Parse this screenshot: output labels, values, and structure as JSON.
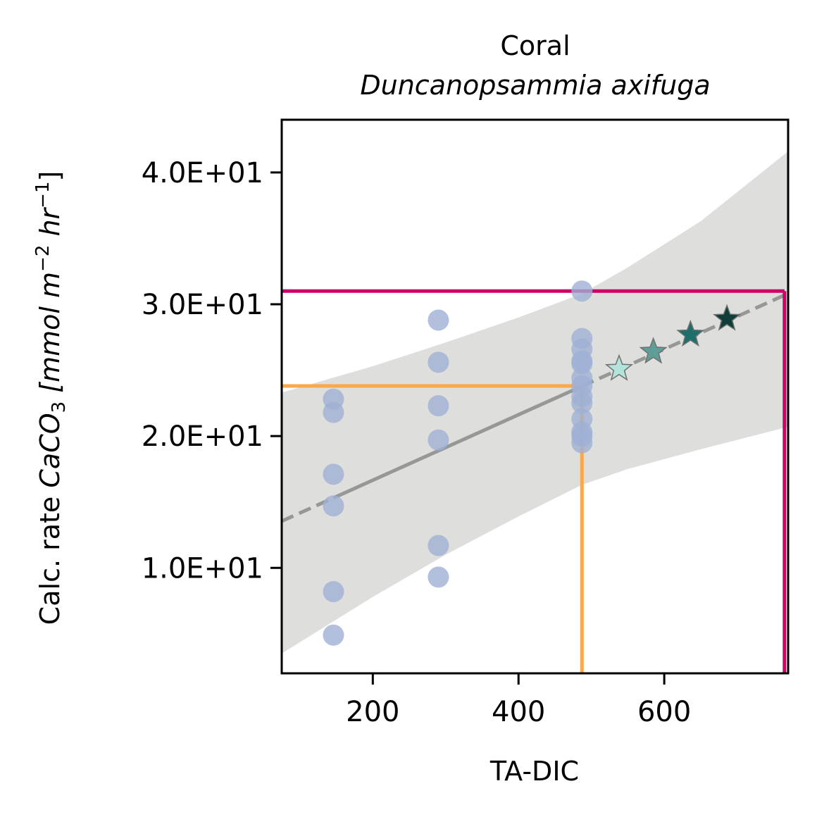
{
  "chart_data": {
    "type": "scatter",
    "title": "Coral",
    "subtitle": "Duncanopsammia axifuga",
    "xlabel": "TA-DIC",
    "ylabel_prefix": "Calc. rate ",
    "ylabel_compound": "CaCO",
    "ylabel_compound_sub": "3",
    "ylabel_unit_open": " [mmol m",
    "ylabel_unit_exp1": "−2",
    "ylabel_unit_mid": " hr",
    "ylabel_unit_exp2": "−1",
    "ylabel_unit_close": "]",
    "xlim": [
      75,
      770
    ],
    "ylim": [
      2,
      44
    ],
    "xticks": [
      {
        "value": 200,
        "label": "200"
      },
      {
        "value": 400,
        "label": "400"
      },
      {
        "value": 600,
        "label": "600"
      }
    ],
    "yticks": [
      {
        "value": 10,
        "label": "1.0E+01"
      },
      {
        "value": 20,
        "label": "2.0E+01"
      },
      {
        "value": 30,
        "label": "3.0E+01"
      },
      {
        "value": 40,
        "label": "4.0E+01"
      }
    ],
    "scatter_color": "#9fb0d4",
    "observations": [
      {
        "x": 146,
        "y": 22.8
      },
      {
        "x": 146,
        "y": 21.8
      },
      {
        "x": 146,
        "y": 17.1
      },
      {
        "x": 146,
        "y": 14.7
      },
      {
        "x": 146,
        "y": 8.2
      },
      {
        "x": 146,
        "y": 4.9
      },
      {
        "x": 290,
        "y": 28.8
      },
      {
        "x": 290,
        "y": 25.6
      },
      {
        "x": 290,
        "y": 22.3
      },
      {
        "x": 290,
        "y": 19.7
      },
      {
        "x": 290,
        "y": 11.7
      },
      {
        "x": 290,
        "y": 9.3
      },
      {
        "x": 487,
        "y": 31.0
      },
      {
        "x": 487,
        "y": 27.4
      },
      {
        "x": 487,
        "y": 26.6
      },
      {
        "x": 487,
        "y": 25.7
      },
      {
        "x": 487,
        "y": 25.5
      },
      {
        "x": 487,
        "y": 24.4
      },
      {
        "x": 487,
        "y": 23.8
      },
      {
        "x": 487,
        "y": 23.0
      },
      {
        "x": 487,
        "y": 22.5
      },
      {
        "x": 487,
        "y": 21.3
      },
      {
        "x": 487,
        "y": 20.3
      },
      {
        "x": 487,
        "y": 20.0
      },
      {
        "x": 487,
        "y": 19.5
      }
    ],
    "fit_line": {
      "color": "#959895",
      "solid_range": [
        146,
        487
      ],
      "dashed_left": [
        75,
        146
      ],
      "dashed_right": [
        487,
        770
      ],
      "intercept": 11.68,
      "slope": 0.02485
    },
    "confidence_band": {
      "color": "#dededd",
      "x": [
        75,
        200,
        300,
        400,
        487,
        550,
        650,
        770
      ],
      "lower": [
        3.5,
        7.8,
        11.0,
        13.9,
        16.3,
        17.5,
        19.0,
        20.7
      ],
      "upper": [
        23.3,
        25.3,
        27.1,
        29.0,
        30.8,
        32.8,
        36.3,
        41.6
      ]
    },
    "reference_lines": [
      {
        "name": "orange",
        "color": "#fba84a",
        "x": 487,
        "y": 23.8
      },
      {
        "name": "magenta",
        "color": "#cc0066",
        "x": 765,
        "y": 31.0
      }
    ],
    "projection_stars": [
      {
        "x": 538,
        "y": 25.1,
        "color": "#b3e4db"
      },
      {
        "x": 585,
        "y": 26.4,
        "color": "#5e9e97"
      },
      {
        "x": 636,
        "y": 27.7,
        "color": "#1e6e6c"
      },
      {
        "x": 686,
        "y": 28.9,
        "color": "#0f3d38"
      }
    ],
    "grid": false,
    "legend": "none"
  }
}
